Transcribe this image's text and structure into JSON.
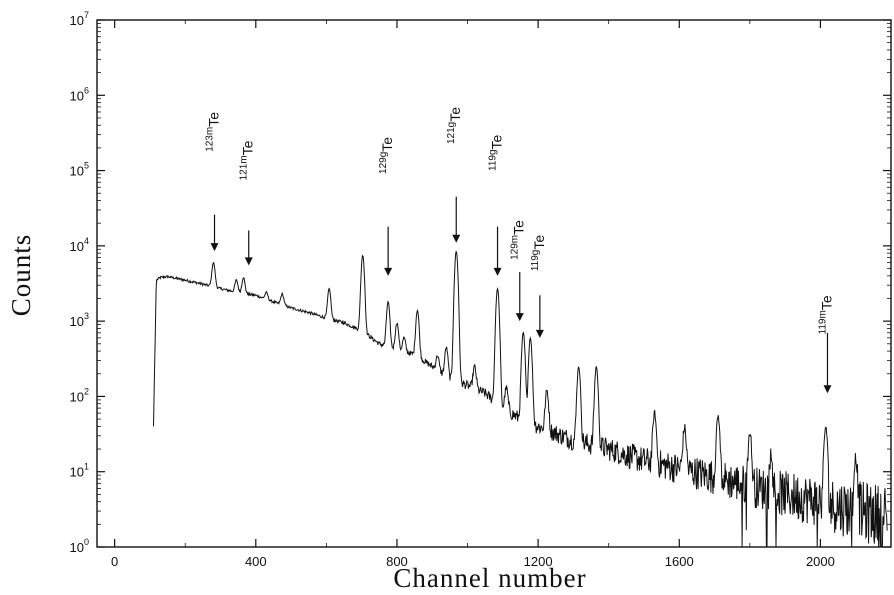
{
  "chart_data": {
    "type": "line",
    "title": "",
    "xlabel": "Channel number",
    "ylabel": "Counts",
    "xlim": [
      -50,
      2200
    ],
    "ylim": [
      1,
      10000000
    ],
    "yscale": "log",
    "grid": false,
    "x_ticks": [
      {
        "value": 0,
        "label": "0"
      },
      {
        "value": 400,
        "label": "400"
      },
      {
        "value": 800,
        "label": "800"
      },
      {
        "value": 1200,
        "label": "1200"
      },
      {
        "value": 1600,
        "label": "1600"
      },
      {
        "value": 2000,
        "label": "2000"
      }
    ],
    "y_ticks": [
      {
        "value": 1,
        "base": "10",
        "exp": "0"
      },
      {
        "value": 10,
        "base": "10",
        "exp": "1"
      },
      {
        "value": 100,
        "base": "10",
        "exp": "2"
      },
      {
        "value": 1000,
        "base": "10",
        "exp": "3"
      },
      {
        "value": 10000,
        "base": "10",
        "exp": "4"
      },
      {
        "value": 100000,
        "base": "10",
        "exp": "5"
      },
      {
        "value": 1000000,
        "base": "10",
        "exp": "6"
      },
      {
        "value": 10000000,
        "base": "10",
        "exp": "7"
      }
    ],
    "continuum": [
      [
        110,
        40
      ],
      [
        118,
        3500
      ],
      [
        130,
        3800
      ],
      [
        150,
        3900
      ],
      [
        200,
        3500
      ],
      [
        250,
        3100
      ],
      [
        300,
        2700
      ],
      [
        350,
        2400
      ],
      [
        400,
        2200
      ],
      [
        450,
        1800
      ],
      [
        500,
        1500
      ],
      [
        550,
        1300
      ],
      [
        600,
        1100
      ],
      [
        650,
        950
      ],
      [
        700,
        750
      ],
      [
        750,
        500
      ],
      [
        800,
        420
      ],
      [
        850,
        360
      ],
      [
        900,
        250
      ],
      [
        950,
        170
      ],
      [
        1000,
        140
      ],
      [
        1050,
        110
      ],
      [
        1100,
        70
      ],
      [
        1150,
        50
      ],
      [
        1200,
        40
      ],
      [
        1300,
        26
      ],
      [
        1400,
        20
      ],
      [
        1500,
        14
      ],
      [
        1600,
        11
      ],
      [
        1700,
        8.5
      ],
      [
        1800,
        6.5
      ],
      [
        1900,
        5
      ],
      [
        2000,
        4
      ],
      [
        2100,
        3
      ],
      [
        2190,
        2.5
      ]
    ],
    "peaks": [
      {
        "x": 280,
        "y": 6000
      },
      {
        "x": 345,
        "y": 3500
      },
      {
        "x": 365,
        "y": 3800
      },
      {
        "x": 430,
        "y": 2400
      },
      {
        "x": 475,
        "y": 2300
      },
      {
        "x": 608,
        "y": 2700
      },
      {
        "x": 703,
        "y": 7500
      },
      {
        "x": 775,
        "y": 1800
      },
      {
        "x": 800,
        "y": 950
      },
      {
        "x": 820,
        "y": 600
      },
      {
        "x": 858,
        "y": 1400
      },
      {
        "x": 915,
        "y": 350
      },
      {
        "x": 940,
        "y": 450
      },
      {
        "x": 968,
        "y": 8500
      },
      {
        "x": 1020,
        "y": 250
      },
      {
        "x": 1085,
        "y": 2700
      },
      {
        "x": 1110,
        "y": 130
      },
      {
        "x": 1158,
        "y": 700
      },
      {
        "x": 1178,
        "y": 600
      },
      {
        "x": 1225,
        "y": 120
      },
      {
        "x": 1315,
        "y": 250
      },
      {
        "x": 1365,
        "y": 250
      },
      {
        "x": 1530,
        "y": 60
      },
      {
        "x": 1615,
        "y": 38
      },
      {
        "x": 1710,
        "y": 55
      },
      {
        "x": 1800,
        "y": 33
      },
      {
        "x": 1860,
        "y": 18
      },
      {
        "x": 2015,
        "y": 40
      },
      {
        "x": 2100,
        "y": 15
      }
    ],
    "annotations": [
      {
        "mass": "123m",
        "sym": "Te",
        "x": 283,
        "arrow_from": 26000,
        "arrow_to": 8500,
        "text_at": 600000,
        "rotated": true
      },
      {
        "mass": "121m",
        "sym": "Te",
        "x": 380,
        "arrow_from": 16000,
        "arrow_to": 5500,
        "text_at": 250000,
        "rotated": true
      },
      {
        "mass": "129g",
        "sym": "Te",
        "x": 775,
        "arrow_from": 18000,
        "arrow_to": 4000,
        "text_at": 280000,
        "rotated": true
      },
      {
        "mass": "121g",
        "sym": "Te",
        "x": 968,
        "arrow_from": 45000,
        "arrow_to": 11000,
        "text_at": 700000,
        "rotated": true
      },
      {
        "mass": "119g",
        "sym": "Te",
        "x": 1085,
        "arrow_from": 18000,
        "arrow_to": 4000,
        "text_at": 300000,
        "rotated": true
      },
      {
        "mass": "129m",
        "sym": "Te",
        "x": 1148,
        "arrow_from": 4500,
        "arrow_to": 1000,
        "text_at": 22000,
        "rotated": true
      },
      {
        "mass": "119g",
        "sym": "Te",
        "x": 1205,
        "arrow_from": 2200,
        "arrow_to": 600,
        "text_at": 14000,
        "rotated": true
      },
      {
        "mass": "119m",
        "sym": "Te",
        "x": 2020,
        "arrow_from": 700,
        "arrow_to": 110,
        "text_at": 2200,
        "rotated": true
      }
    ]
  }
}
